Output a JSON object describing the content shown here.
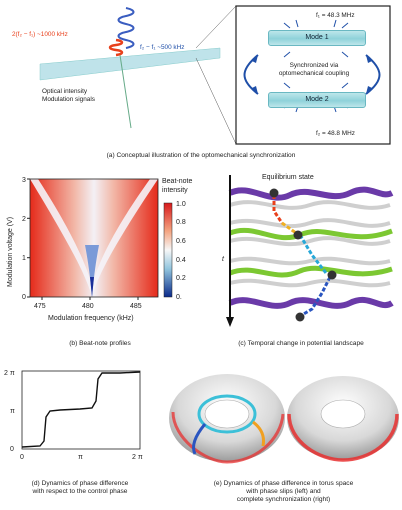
{
  "panel_a": {
    "sideband_label": "2(f₂ − f₁) ~1000 kHz",
    "beat_label": "f₂ − f₁ ~500 kHz",
    "optical_label_line1": "Optical intensity",
    "optical_label_line2": "Modulation signals",
    "f1": "f₁ = 48.3 MHz",
    "mode1": "Mode 1",
    "sync_line1": "Synchronized via",
    "sync_line2": "optomechanical coupling",
    "mode2": "Mode 2",
    "f2": "f₂ = 48.8 MHz",
    "caption": "(a) Conceptual illustration of the optomechanical synchronization",
    "colors": {
      "red": "#e8401c",
      "blue": "#1f4fa8",
      "cyan": "#8fd2da"
    }
  },
  "panel_b": {
    "ylabel": "Modulation voltage (V)",
    "xlabel": "Modulation frequency (kHz)",
    "yticks": [
      "0",
      "1",
      "2",
      "3"
    ],
    "xticks": [
      "475",
      "480",
      "485"
    ],
    "colorbar_title_line1": "Beat-note",
    "colorbar_title_line2": "intensity",
    "colorbar_ticks": [
      "1.0",
      "0.8",
      "0.6",
      "0.4",
      "0.2",
      "0."
    ],
    "caption": "(b) Beat-note profiles"
  },
  "panel_c": {
    "label_equilibrium": "Equilibrium state",
    "axis_t": "t",
    "caption": "(c) Temporal change in potential landscape"
  },
  "panel_d": {
    "yticks": [
      "0",
      "π",
      "2 π"
    ],
    "xticks": [
      "0",
      "π",
      "2 π"
    ],
    "caption_line1": "(d) Dynamics of phase difference",
    "caption_line2": "with respect to the control phase"
  },
  "panel_e": {
    "caption_line1": "(e) Dynamics of phase difference in torus space",
    "caption_line2": "with phase slips (left) and",
    "caption_line3": "complete synchronization (right)"
  }
}
